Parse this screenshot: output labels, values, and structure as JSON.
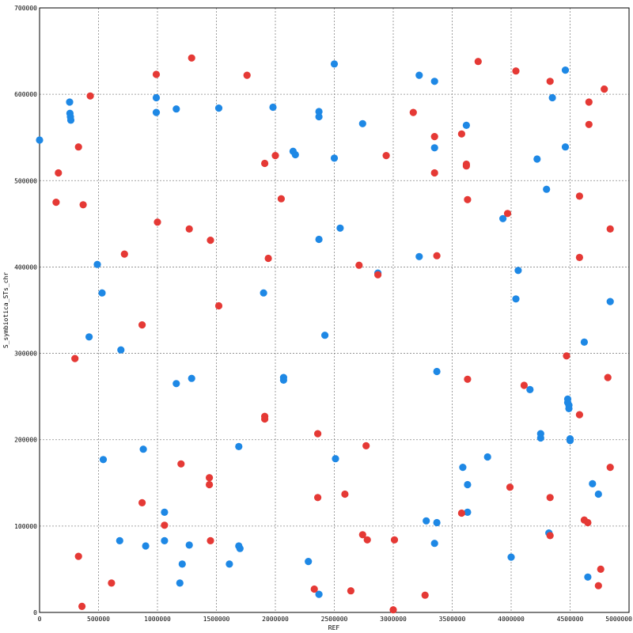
{
  "chart_data": {
    "type": "scatter",
    "title": "",
    "xlabel": "REF",
    "ylabel": "S_symbiotica_STs_chr",
    "xlim": [
      0,
      5000000
    ],
    "ylim": [
      0,
      700000
    ],
    "xticks": [
      0,
      500000,
      1000000,
      1500000,
      2000000,
      2500000,
      3000000,
      3500000,
      4000000,
      4500000,
      5000000
    ],
    "yticks": [
      0,
      100000,
      200000,
      300000,
      400000,
      500000,
      600000,
      700000
    ],
    "xtick_labels": [
      "0",
      "500000",
      "1000000",
      "1500000",
      "2000000",
      "2500000",
      "3000000",
      "3500000",
      "4000000",
      "4500000",
      "5000000"
    ],
    "ytick_labels": [
      "0",
      "100000",
      "200000",
      "300000",
      "400000",
      "500000",
      "600000",
      "700000"
    ],
    "grid": true,
    "legend": "none",
    "series": [
      {
        "color": "#1e88e5",
        "points": [
          [
            0,
            547000
          ],
          [
            255000,
            591000
          ],
          [
            258000,
            578000
          ],
          [
            262000,
            574000
          ],
          [
            265000,
            570000
          ],
          [
            490000,
            403000
          ],
          [
            530000,
            370000
          ],
          [
            420000,
            319000
          ],
          [
            690000,
            304000
          ],
          [
            540000,
            177000
          ],
          [
            680000,
            83000
          ],
          [
            880000,
            189000
          ],
          [
            900000,
            77000
          ],
          [
            990000,
            596000
          ],
          [
            990000,
            579000
          ],
          [
            1060000,
            116000
          ],
          [
            1060000,
            83000
          ],
          [
            1160000,
            583000
          ],
          [
            1160000,
            265000
          ],
          [
            1190000,
            34000
          ],
          [
            1210000,
            56000
          ],
          [
            1270000,
            78000
          ],
          [
            1290000,
            271000
          ],
          [
            1520000,
            584000
          ],
          [
            1610000,
            56000
          ],
          [
            1690000,
            192000
          ],
          [
            1690000,
            77000
          ],
          [
            1700000,
            74000
          ],
          [
            1900000,
            370000
          ],
          [
            1980000,
            585000
          ],
          [
            2070000,
            272000
          ],
          [
            2070000,
            269000
          ],
          [
            2150000,
            534000
          ],
          [
            2170000,
            530000
          ],
          [
            2280000,
            59000
          ],
          [
            2370000,
            580000
          ],
          [
            2370000,
            574000
          ],
          [
            2370000,
            432000
          ],
          [
            2370000,
            21000
          ],
          [
            2420000,
            321000
          ],
          [
            2500000,
            635000
          ],
          [
            2500000,
            526000
          ],
          [
            2510000,
            178000
          ],
          [
            2550000,
            445000
          ],
          [
            2740000,
            566000
          ],
          [
            2870000,
            393000
          ],
          [
            3220000,
            622000
          ],
          [
            3220000,
            412000
          ],
          [
            3280000,
            106000
          ],
          [
            3350000,
            615000
          ],
          [
            3350000,
            538000
          ],
          [
            3350000,
            80000
          ],
          [
            3370000,
            279000
          ],
          [
            3370000,
            104000
          ],
          [
            3590000,
            168000
          ],
          [
            3620000,
            564000
          ],
          [
            3630000,
            148000
          ],
          [
            3630000,
            116000
          ],
          [
            3800000,
            180000
          ],
          [
            3930000,
            456000
          ],
          [
            4000000,
            64000
          ],
          [
            4040000,
            363000
          ],
          [
            4060000,
            396000
          ],
          [
            4160000,
            258000
          ],
          [
            4220000,
            525000
          ],
          [
            4250000,
            207000
          ],
          [
            4250000,
            202000
          ],
          [
            4300000,
            490000
          ],
          [
            4320000,
            92000
          ],
          [
            4350000,
            596000
          ],
          [
            4460000,
            628000
          ],
          [
            4460000,
            539000
          ],
          [
            4480000,
            247000
          ],
          [
            4480000,
            243000
          ],
          [
            4490000,
            240000
          ],
          [
            4490000,
            236000
          ],
          [
            4500000,
            201000
          ],
          [
            4500000,
            199000
          ],
          [
            4620000,
            313000
          ],
          [
            4650000,
            41000
          ],
          [
            4690000,
            149000
          ],
          [
            4740000,
            137000
          ],
          [
            4840000,
            360000
          ]
        ]
      },
      {
        "color": "#e53935",
        "points": [
          [
            140000,
            475000
          ],
          [
            160000,
            509000
          ],
          [
            300000,
            294000
          ],
          [
            330000,
            539000
          ],
          [
            330000,
            65000
          ],
          [
            360000,
            7000
          ],
          [
            370000,
            472000
          ],
          [
            430000,
            598000
          ],
          [
            610000,
            34000
          ],
          [
            720000,
            415000
          ],
          [
            870000,
            333000
          ],
          [
            870000,
            127000
          ],
          [
            990000,
            623000
          ],
          [
            1000000,
            452000
          ],
          [
            1060000,
            101000
          ],
          [
            1200000,
            172000
          ],
          [
            1270000,
            444000
          ],
          [
            1290000,
            642000
          ],
          [
            1440000,
            156000
          ],
          [
            1440000,
            148000
          ],
          [
            1450000,
            431000
          ],
          [
            1450000,
            83000
          ],
          [
            1520000,
            355000
          ],
          [
            1760000,
            622000
          ],
          [
            1910000,
            520000
          ],
          [
            1910000,
            227000
          ],
          [
            1910000,
            224000
          ],
          [
            1940000,
            410000
          ],
          [
            2000000,
            529000
          ],
          [
            2050000,
            479000
          ],
          [
            2330000,
            27000
          ],
          [
            2360000,
            207000
          ],
          [
            2360000,
            133000
          ],
          [
            2590000,
            137000
          ],
          [
            2640000,
            25000
          ],
          [
            2710000,
            402000
          ],
          [
            2740000,
            90000
          ],
          [
            2770000,
            193000
          ],
          [
            2780000,
            84000
          ],
          [
            2870000,
            391000
          ],
          [
            2940000,
            529000
          ],
          [
            3000000,
            3000
          ],
          [
            3010000,
            84000
          ],
          [
            3270000,
            20000
          ],
          [
            3170000,
            579000
          ],
          [
            3350000,
            551000
          ],
          [
            3350000,
            509000
          ],
          [
            3370000,
            413000
          ],
          [
            3580000,
            554000
          ],
          [
            3580000,
            115000
          ],
          [
            3620000,
            519000
          ],
          [
            3620000,
            517000
          ],
          [
            3630000,
            478000
          ],
          [
            3630000,
            270000
          ],
          [
            3720000,
            638000
          ],
          [
            3970000,
            462000
          ],
          [
            3990000,
            145000
          ],
          [
            4040000,
            627000
          ],
          [
            4110000,
            263000
          ],
          [
            4330000,
            615000
          ],
          [
            4330000,
            133000
          ],
          [
            4330000,
            89000
          ],
          [
            4470000,
            297000
          ],
          [
            4580000,
            482000
          ],
          [
            4580000,
            411000
          ],
          [
            4580000,
            229000
          ],
          [
            4620000,
            107000
          ],
          [
            4650000,
            104000
          ],
          [
            4660000,
            591000
          ],
          [
            4660000,
            565000
          ],
          [
            4740000,
            31000
          ],
          [
            4760000,
            50000
          ],
          [
            4790000,
            606000
          ],
          [
            4820000,
            272000
          ],
          [
            4840000,
            444000
          ],
          [
            4840000,
            168000
          ]
        ]
      }
    ]
  }
}
